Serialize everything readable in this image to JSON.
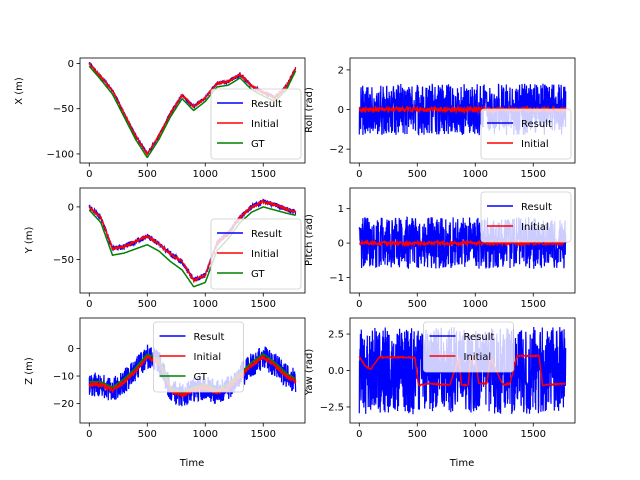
{
  "chart_data": [
    {
      "type": "line",
      "ylabel": "X (m)",
      "xlabel": "",
      "xlim": [
        -80,
        1860
      ],
      "ylim": [
        -110,
        6
      ],
      "xticks": [
        "0",
        "500",
        "1000",
        "1500"
      ],
      "xtick_values": [
        0,
        500,
        1000,
        1500
      ],
      "yticks": [
        "0",
        "−50",
        "−100"
      ],
      "ytick_values": [
        0,
        -50,
        -100
      ],
      "legend_position": "lower-right",
      "legend": [
        "Result",
        "Initial",
        "GT"
      ],
      "x": [
        0,
        100,
        200,
        300,
        400,
        500,
        600,
        700,
        800,
        900,
        1000,
        1100,
        1200,
        1300,
        1400,
        1500,
        1600,
        1700,
        1780
      ],
      "series": [
        {
          "name": "Result",
          "color": "#0000ff",
          "noise": 2,
          "values": [
            0,
            -15,
            -30,
            -55,
            -80,
            -100,
            -80,
            -55,
            -35,
            -48,
            -38,
            -22,
            -20,
            -12,
            -25,
            -32,
            -38,
            -25,
            -5
          ]
        },
        {
          "name": "Initial",
          "color": "#ff0000",
          "noise": 1,
          "values": [
            0,
            -15,
            -30,
            -55,
            -80,
            -100,
            -80,
            -55,
            -35,
            -48,
            -38,
            -22,
            -20,
            -12,
            -25,
            -32,
            -38,
            -25,
            -5
          ]
        },
        {
          "name": "GT",
          "color": "#008000",
          "noise": 0,
          "values": [
            -3,
            -18,
            -34,
            -59,
            -84,
            -104,
            -84,
            -59,
            -39,
            -52,
            -42,
            -26,
            -24,
            -16,
            -29,
            -36,
            -42,
            -29,
            -8
          ]
        }
      ]
    },
    {
      "type": "line",
      "ylabel": "Roll (rad)",
      "xlabel": "",
      "xlim": [
        -80,
        1860
      ],
      "ylim": [
        -2.7,
        2.6
      ],
      "xticks": [
        "0",
        "500",
        "1000",
        "1500"
      ],
      "xtick_values": [
        0,
        500,
        1000,
        1500
      ],
      "yticks": [
        "2",
        "0",
        "−2"
      ],
      "ytick_values": [
        2,
        0,
        -2
      ],
      "legend_position": "lower-right",
      "legend": [
        "Result",
        "Initial"
      ],
      "x": [
        0,
        1780
      ],
      "series": [
        {
          "name": "Result",
          "color": "#0000ff",
          "noise": 1.3,
          "values": [
            0,
            0
          ]
        },
        {
          "name": "Initial",
          "color": "#ff0000",
          "noise": 0.12,
          "values": [
            0,
            0
          ]
        }
      ]
    },
    {
      "type": "line",
      "ylabel": "Y (m)",
      "xlabel": "",
      "xlim": [
        -80,
        1860
      ],
      "ylim": [
        -82,
        18
      ],
      "xticks": [
        "0",
        "500",
        "1000",
        "1500"
      ],
      "xtick_values": [
        0,
        500,
        1000,
        1500
      ],
      "yticks": [
        "0",
        "−50"
      ],
      "ytick_values": [
        0,
        -50
      ],
      "legend_position": "lower-right",
      "legend": [
        "Result",
        "Initial",
        "GT"
      ],
      "x": [
        0,
        100,
        200,
        300,
        400,
        500,
        600,
        700,
        800,
        900,
        1000,
        1100,
        1200,
        1300,
        1400,
        1500,
        1600,
        1700,
        1780
      ],
      "series": [
        {
          "name": "Result",
          "color": "#0000ff",
          "noise": 2.5,
          "values": [
            0,
            -10,
            -40,
            -38,
            -33,
            -28,
            -35,
            -45,
            -52,
            -70,
            -65,
            -35,
            -25,
            -10,
            0,
            5,
            2,
            -2,
            -5
          ]
        },
        {
          "name": "Initial",
          "color": "#ff0000",
          "noise": 1,
          "values": [
            0,
            -10,
            -40,
            -38,
            -33,
            -28,
            -35,
            -45,
            -52,
            -70,
            -65,
            -35,
            -25,
            -10,
            0,
            5,
            2,
            -2,
            -5
          ]
        },
        {
          "name": "GT",
          "color": "#008000",
          "noise": 0,
          "values": [
            -3,
            -15,
            -46,
            -44,
            -40,
            -36,
            -42,
            -52,
            -60,
            -76,
            -72,
            -42,
            -30,
            -15,
            -5,
            0,
            -3,
            -6,
            -8
          ]
        }
      ]
    },
    {
      "type": "line",
      "ylabel": "Pitch (rad)",
      "xlabel": "",
      "xlim": [
        -80,
        1860
      ],
      "ylim": [
        -1.45,
        1.6
      ],
      "xticks": [
        "0",
        "500",
        "1000",
        "1500"
      ],
      "xtick_values": [
        0,
        500,
        1000,
        1500
      ],
      "yticks": [
        "1",
        "0",
        "−1"
      ],
      "ytick_values": [
        1,
        0,
        -1
      ],
      "legend_position": "top-right",
      "legend": [
        "Result",
        "Initial"
      ],
      "x": [
        0,
        1780
      ],
      "series": [
        {
          "name": "Result",
          "color": "#0000ff",
          "noise": 0.75,
          "values": [
            0,
            0
          ]
        },
        {
          "name": "Initial",
          "color": "#ff0000",
          "noise": 0.05,
          "values": [
            0,
            0
          ]
        }
      ]
    },
    {
      "type": "line",
      "ylabel": "Z (m)",
      "xlabel": "Time",
      "xlim": [
        -80,
        1860
      ],
      "ylim": [
        -27,
        11
      ],
      "xticks": [
        "0",
        "500",
        "1000",
        "1500"
      ],
      "xtick_values": [
        0,
        500,
        1000,
        1500
      ],
      "yticks": [
        "0",
        "−10",
        "−20"
      ],
      "ytick_values": [
        0,
        -10,
        -20
      ],
      "legend_position": "top-center",
      "legend": [
        "Result",
        "Initial",
        "GT"
      ],
      "x": [
        0,
        100,
        200,
        300,
        400,
        500,
        600,
        700,
        800,
        900,
        1000,
        1100,
        1200,
        1300,
        1400,
        1500,
        1600,
        1700,
        1780
      ],
      "series": [
        {
          "name": "Result",
          "color": "#0000ff",
          "noise": 4.5,
          "values": [
            -13,
            -13,
            -15,
            -12,
            -8,
            -3,
            -5,
            -15,
            -17,
            -15,
            -14,
            -16,
            -14,
            -10,
            -6,
            -3,
            -6,
            -10,
            -12
          ]
        },
        {
          "name": "Initial",
          "color": "#ff0000",
          "noise": 1,
          "values": [
            -13,
            -13,
            -15,
            -12,
            -8,
            -3,
            -5,
            -15,
            -17,
            -15,
            -14,
            -16,
            -14,
            -10,
            -6,
            -3,
            -6,
            -10,
            -12
          ]
        },
        {
          "name": "GT",
          "color": "#008000",
          "noise": 0,
          "values": [
            -12,
            -12,
            -14,
            -11,
            -7,
            -2,
            -4,
            -14,
            -16,
            -14,
            -13,
            -15,
            -13,
            -9,
            -5,
            -2,
            -5,
            -9,
            -11
          ]
        }
      ]
    },
    {
      "type": "line",
      "ylabel": "Yaw (rad)",
      "xlabel": "Time",
      "xlim": [
        -80,
        1860
      ],
      "ylim": [
        -3.6,
        3.6
      ],
      "xticks": [
        "0",
        "500",
        "1000",
        "1500"
      ],
      "xtick_values": [
        0,
        500,
        1000,
        1500
      ],
      "yticks": [
        "2.5",
        "0.0",
        "−2.5"
      ],
      "ytick_values": [
        2.5,
        0,
        -2.5
      ],
      "legend_position": "top-center",
      "legend": [
        "Result",
        "Initial"
      ],
      "x": [
        0,
        1780
      ],
      "series": [
        {
          "name": "Result",
          "color": "#0000ff",
          "noise": 3.0,
          "values": [
            0,
            0
          ]
        },
        {
          "name": "Initial",
          "color": "#ff0000",
          "noise": 0.04,
          "values": [
            0.9,
            0.9
          ],
          "steps": [
            [
              0,
              0.95
            ],
            [
              50,
              0.3
            ],
            [
              100,
              0.1
            ],
            [
              170,
              0.9
            ],
            [
              480,
              0.9
            ],
            [
              510,
              -1.0
            ],
            [
              620,
              -0.9
            ],
            [
              780,
              -1.0
            ],
            [
              860,
              0.9
            ],
            [
              880,
              -1.0
            ],
            [
              940,
              -1.0
            ],
            [
              960,
              0.9
            ],
            [
              1000,
              0.9
            ],
            [
              1030,
              -0.9
            ],
            [
              1100,
              -0.9
            ],
            [
              1130,
              0.9
            ],
            [
              1240,
              -1.0
            ],
            [
              1300,
              -0.9
            ],
            [
              1360,
              1.0
            ],
            [
              1550,
              1.0
            ],
            [
              1580,
              -1.0
            ],
            [
              1780,
              -0.9
            ]
          ]
        }
      ]
    }
  ]
}
